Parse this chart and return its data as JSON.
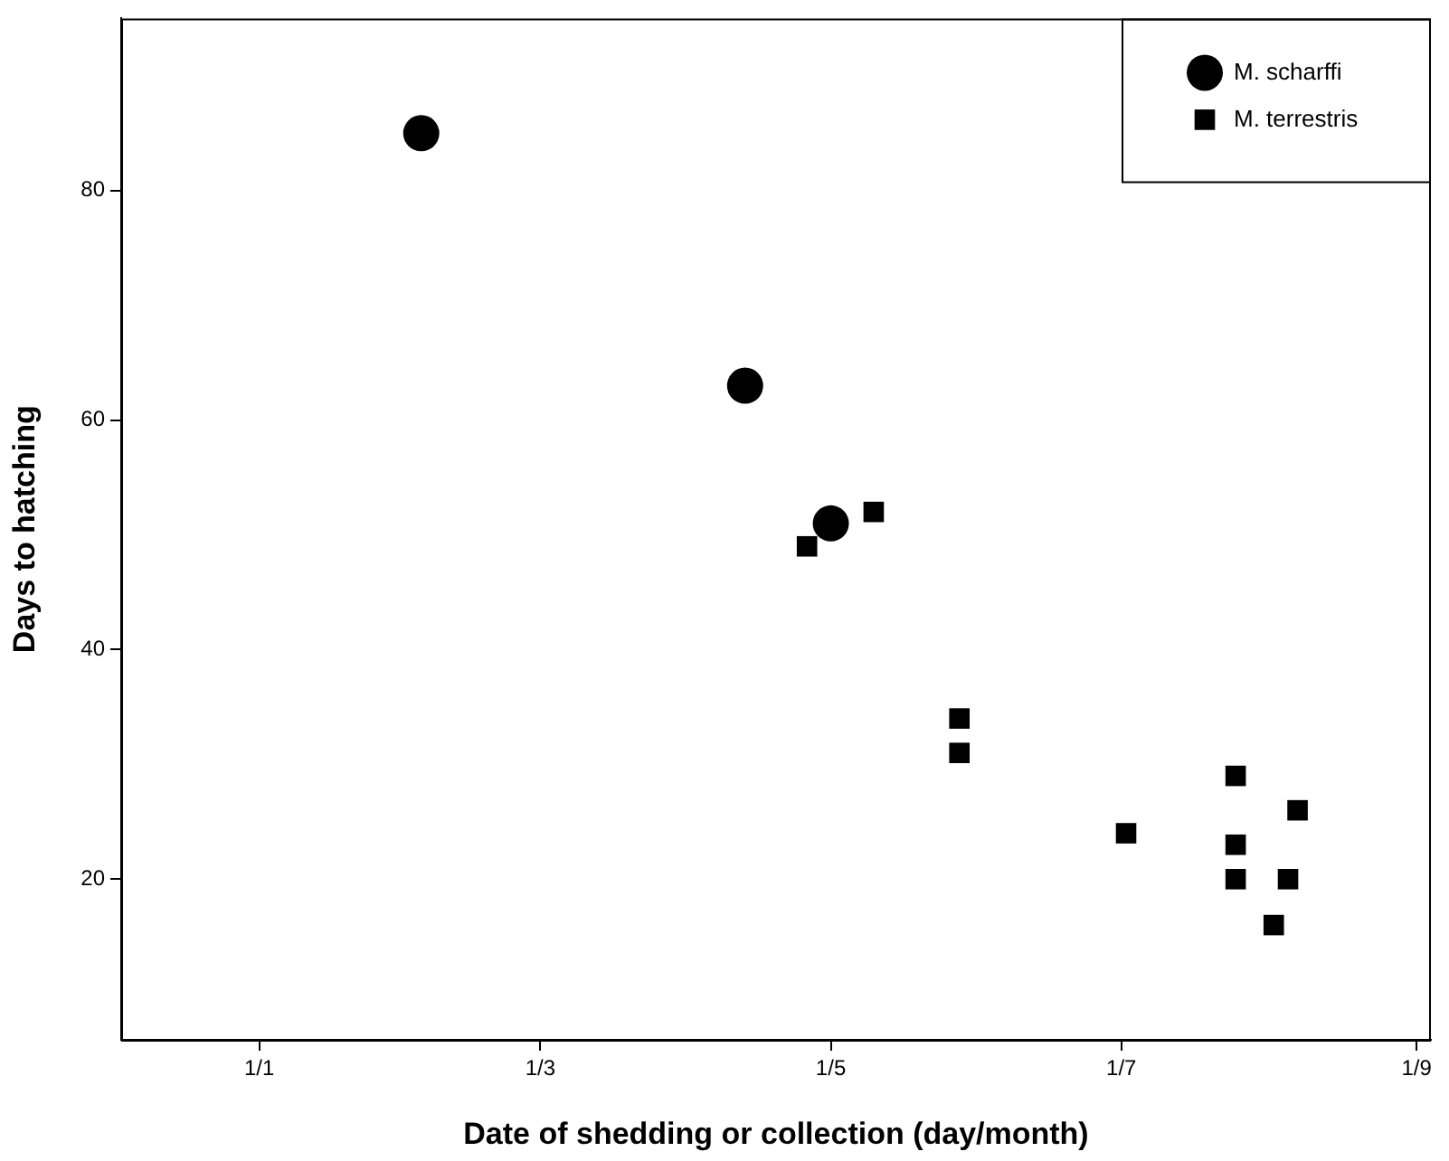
{
  "chart_data": {
    "type": "scatter",
    "xlabel": "Date of shedding or collection (day/month)",
    "ylabel": "Days to hatching",
    "xlim": [
      "2000-12-03",
      "2001-09-04"
    ],
    "ylim": [
      6,
      95
    ],
    "xticks": [
      {
        "value": "--01-01",
        "label": "1/1"
      },
      {
        "value": "--03-01",
        "label": "1/3"
      },
      {
        "value": "--05-01",
        "label": "1/5"
      },
      {
        "value": "--07-01",
        "label": "1/7"
      },
      {
        "value": "--09-01",
        "label": "1/9"
      }
    ],
    "yticks": [
      20,
      40,
      60,
      80
    ],
    "grid": false,
    "legend": "top right",
    "series": [
      {
        "name": "M. scharffi",
        "color": "#000000",
        "marker": "circle",
        "x": [
          "--02-04",
          "--04-13",
          "--05-01"
        ],
        "values": [
          85,
          63,
          51
        ]
      },
      {
        "name": "M. terrestris",
        "color": "#000000",
        "marker": "square",
        "x": [
          "--04-26",
          "--05-10",
          "--05-28",
          "--05-28",
          "--07-02",
          "--07-25",
          "--07-25",
          "--07-25",
          "--08-02",
          "--08-05",
          "--08-07"
        ],
        "values": [
          49,
          52,
          34,
          31,
          24,
          29,
          23,
          20,
          16,
          20,
          26
        ]
      }
    ]
  }
}
